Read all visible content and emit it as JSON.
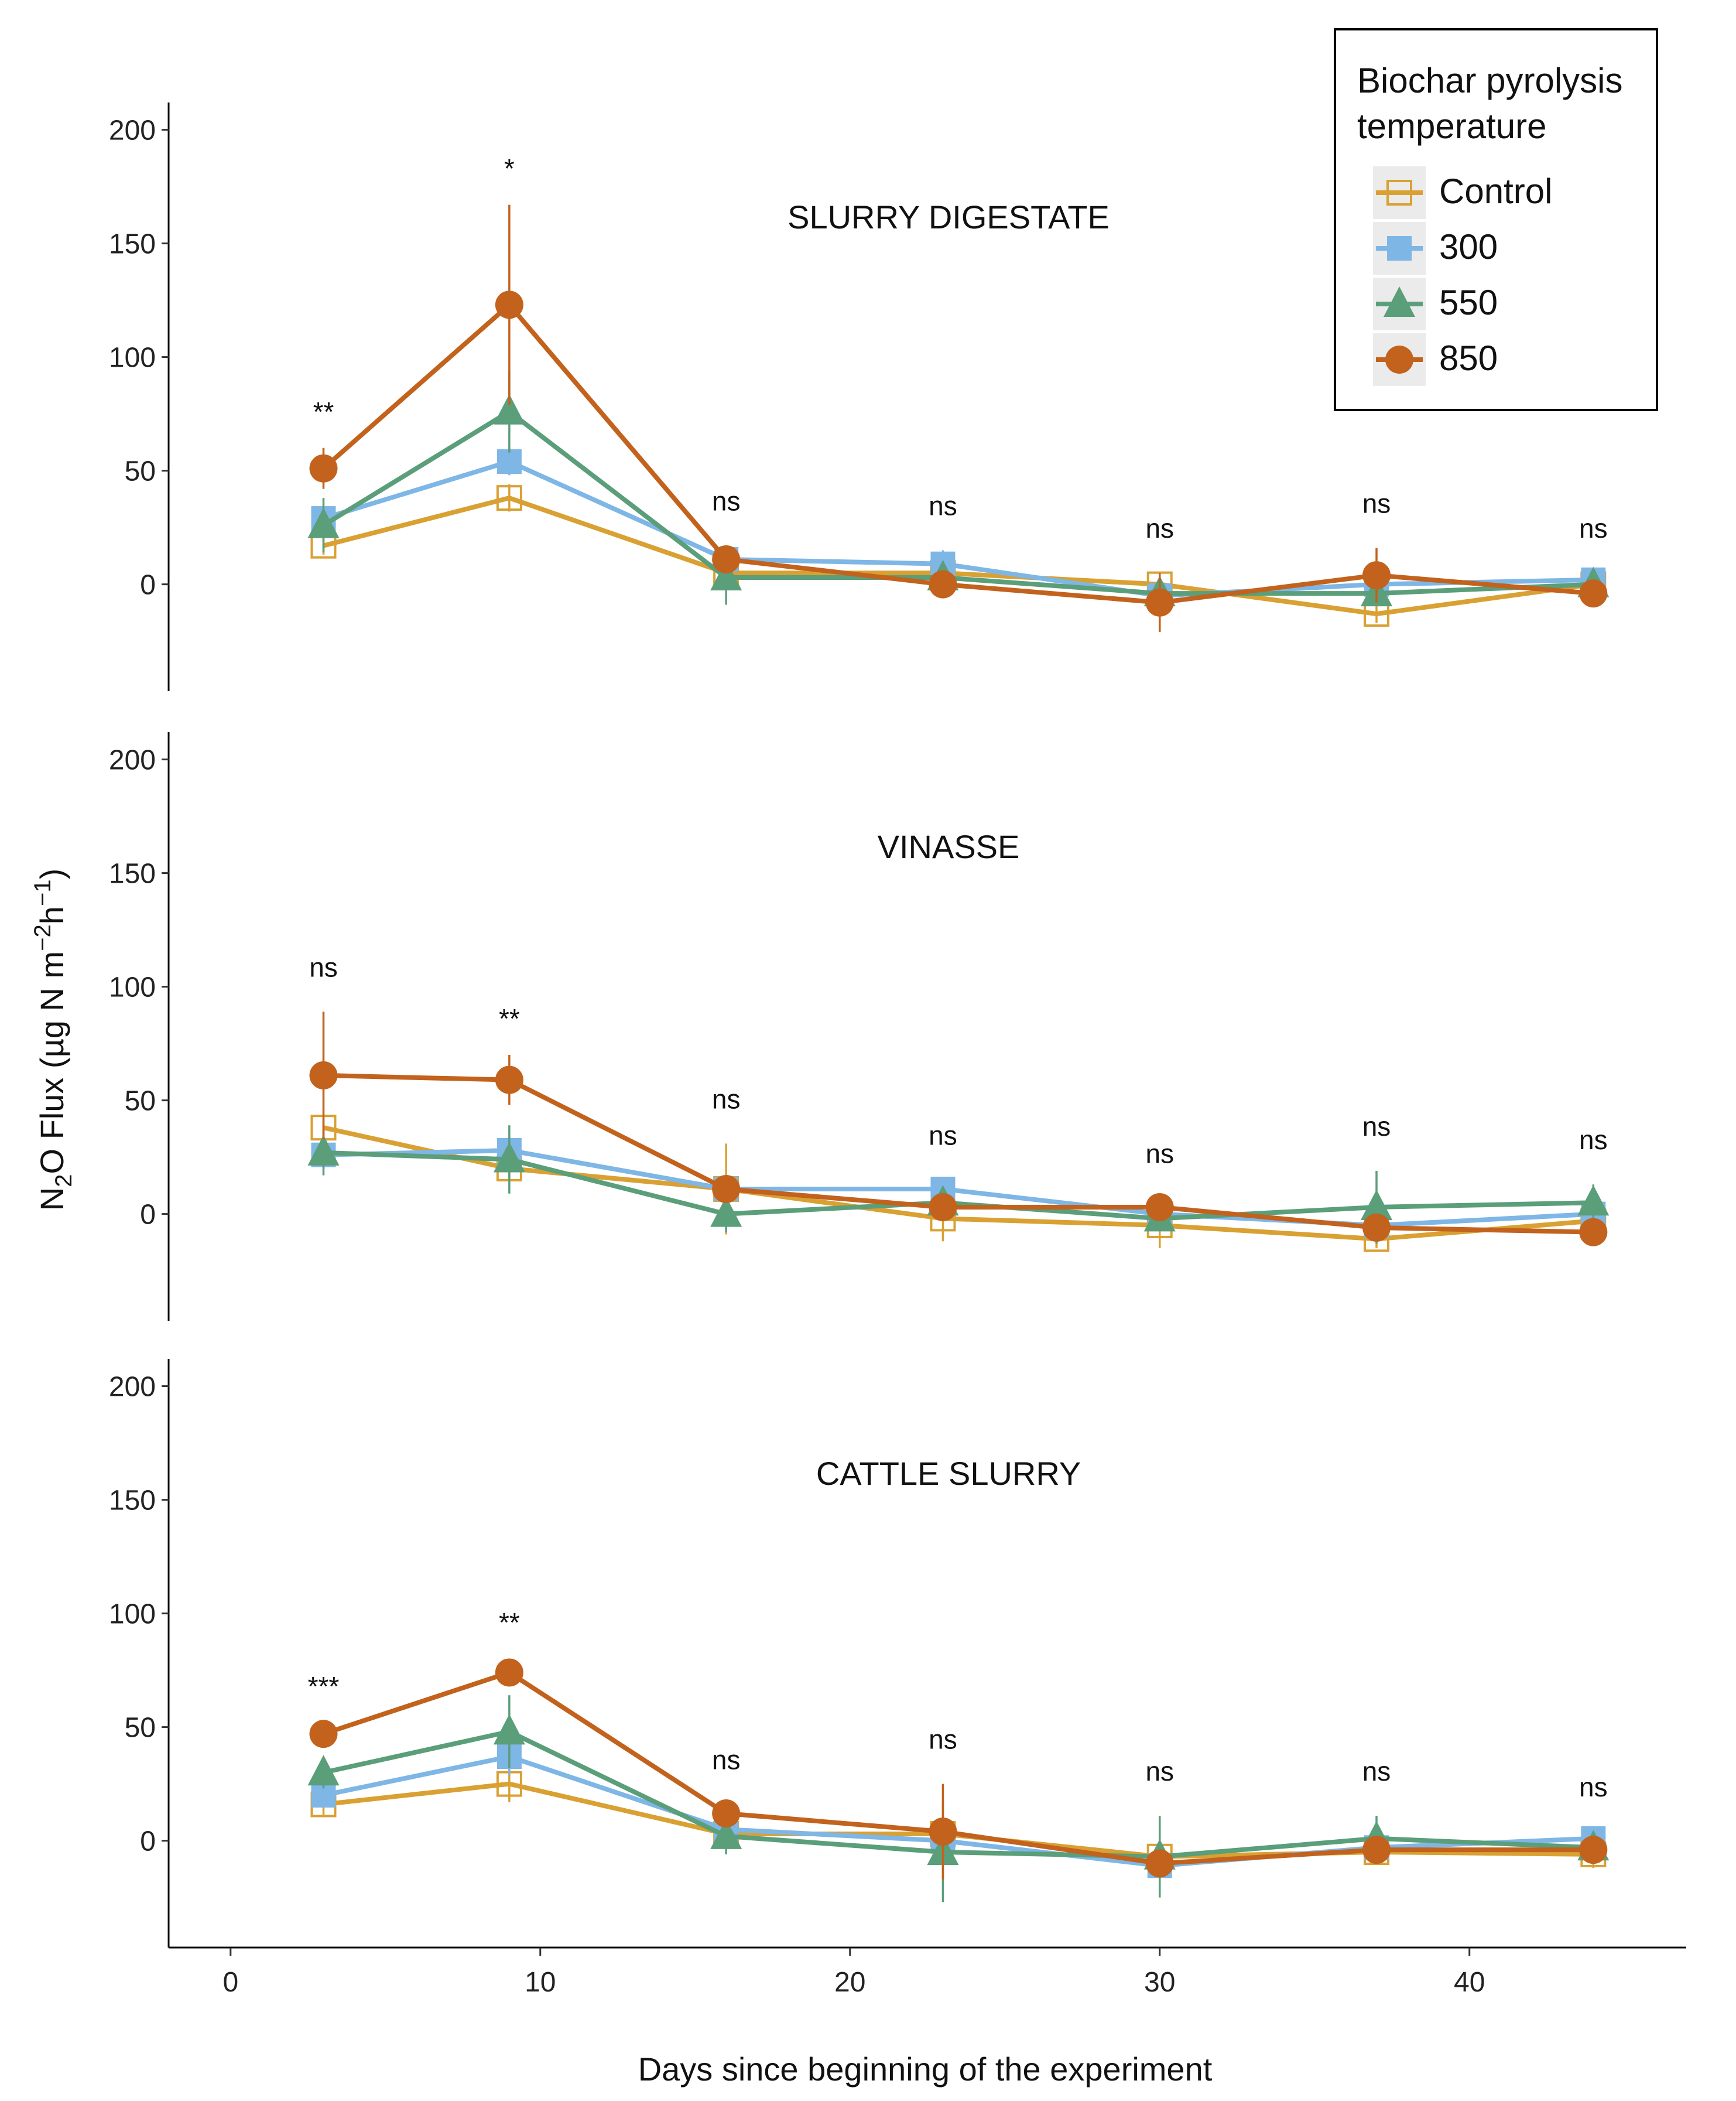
{
  "chart_data": {
    "type": "line",
    "xlabel": "Days since beginning of the experiment",
    "ylabel": "N2O Flux (µg N m−2h−1)",
    "ylabel_parts": {
      "a": "N",
      "sub": "2",
      "b": "O Flux (µg N m",
      "sup1": "−2",
      "c": "h",
      "sup2": "−1",
      "d": ")"
    },
    "xlim": [
      -2,
      47
    ],
    "ylim": [
      -47,
      212
    ],
    "x_ticks": [
      0,
      10,
      20,
      30,
      40
    ],
    "y_ticks": [
      0,
      50,
      100,
      150,
      200
    ],
    "x": [
      3,
      9,
      16,
      23,
      30,
      37,
      44
    ],
    "legend": {
      "title_line1": "Biochar pyrolysis",
      "title_line2": "temperature",
      "position": "top-right",
      "entries": [
        {
          "name": "Control",
          "color": "#D9A032",
          "marker": "open-square"
        },
        {
          "name": "300",
          "color": "#7EB6E6",
          "marker": "square"
        },
        {
          "name": "550",
          "color": "#5A9E7A",
          "marker": "triangle"
        },
        {
          "name": "850",
          "color": "#C2621C",
          "marker": "circle"
        }
      ]
    },
    "panels": [
      {
        "title": "SLURRY DIGESTATE",
        "significance": [
          "**",
          "*",
          "ns",
          "ns",
          "ns",
          "ns",
          "ns"
        ],
        "series": [
          {
            "name": "Control",
            "values": [
              17,
              38,
              5,
              5,
              0,
              -13,
              0
            ],
            "errors": [
              4,
              6,
              3,
              3,
              3,
              4,
              3
            ]
          },
          {
            "name": "300",
            "values": [
              29,
              54,
              11,
              9,
              -5,
              0,
              2
            ],
            "errors": [
              5,
              6,
              5,
              6,
              3,
              3,
              3
            ]
          },
          {
            "name": "550",
            "values": [
              26,
              76,
              3,
              3,
              -4,
              -4,
              0
            ],
            "errors": [
              12,
              18,
              12,
              4,
              4,
              5,
              5
            ]
          },
          {
            "name": "850",
            "values": [
              51,
              123,
              11,
              0,
              -8,
              4,
              -4
            ],
            "errors": [
              9,
              44,
              6,
              4,
              13,
              12,
              4
            ]
          }
        ]
      },
      {
        "title": "VINASSE",
        "significance": [
          "ns",
          "**",
          "ns",
          "ns",
          "ns",
          "ns",
          "ns"
        ],
        "series": [
          {
            "name": "Control",
            "values": [
              38,
              20,
              11,
              -2,
              -5,
              -11,
              -3
            ],
            "errors": [
              5,
              5,
              20,
              10,
              10,
              4,
              4
            ]
          },
          {
            "name": "300",
            "values": [
              26,
              28,
              11,
              11,
              0,
              -5,
              0
            ],
            "errors": [
              6,
              6,
              4,
              4,
              4,
              4,
              3
            ]
          },
          {
            "name": "550",
            "values": [
              27,
              24,
              0,
              5,
              -2,
              3,
              5
            ],
            "errors": [
              10,
              15,
              8,
              4,
              3,
              16,
              8
            ]
          },
          {
            "name": "850",
            "values": [
              61,
              59,
              11,
              3,
              3,
              -6,
              -8
            ],
            "errors": [
              28,
              11,
              5,
              4,
              4,
              4,
              3
            ]
          }
        ]
      },
      {
        "title": "CATTLE SLURRY",
        "significance": [
          "***",
          "**",
          "ns",
          "ns",
          "ns",
          "ns",
          "ns"
        ],
        "series": [
          {
            "name": "Control",
            "values": [
              16,
              25,
              3,
              3,
              -7,
              -5,
              -6
            ],
            "errors": [
              5,
              8,
              4,
              4,
              4,
              4,
              6
            ]
          },
          {
            "name": "300",
            "values": [
              20,
              37,
              5,
              0,
              -11,
              -3,
              1
            ],
            "errors": [
              4,
              8,
              4,
              4,
              10,
              4,
              3
            ]
          },
          {
            "name": "550",
            "values": [
              30,
              48,
              2,
              -5,
              -7,
              1,
              -3
            ],
            "errors": [
              7,
              16,
              8,
              22,
              18,
              10,
              4
            ]
          },
          {
            "name": "850",
            "values": [
              47,
              74,
              12,
              4,
              -10,
              -4,
              -4
            ],
            "errors": [
              5,
              6,
              4,
              21,
              4,
              4,
              4
            ]
          }
        ]
      }
    ]
  }
}
